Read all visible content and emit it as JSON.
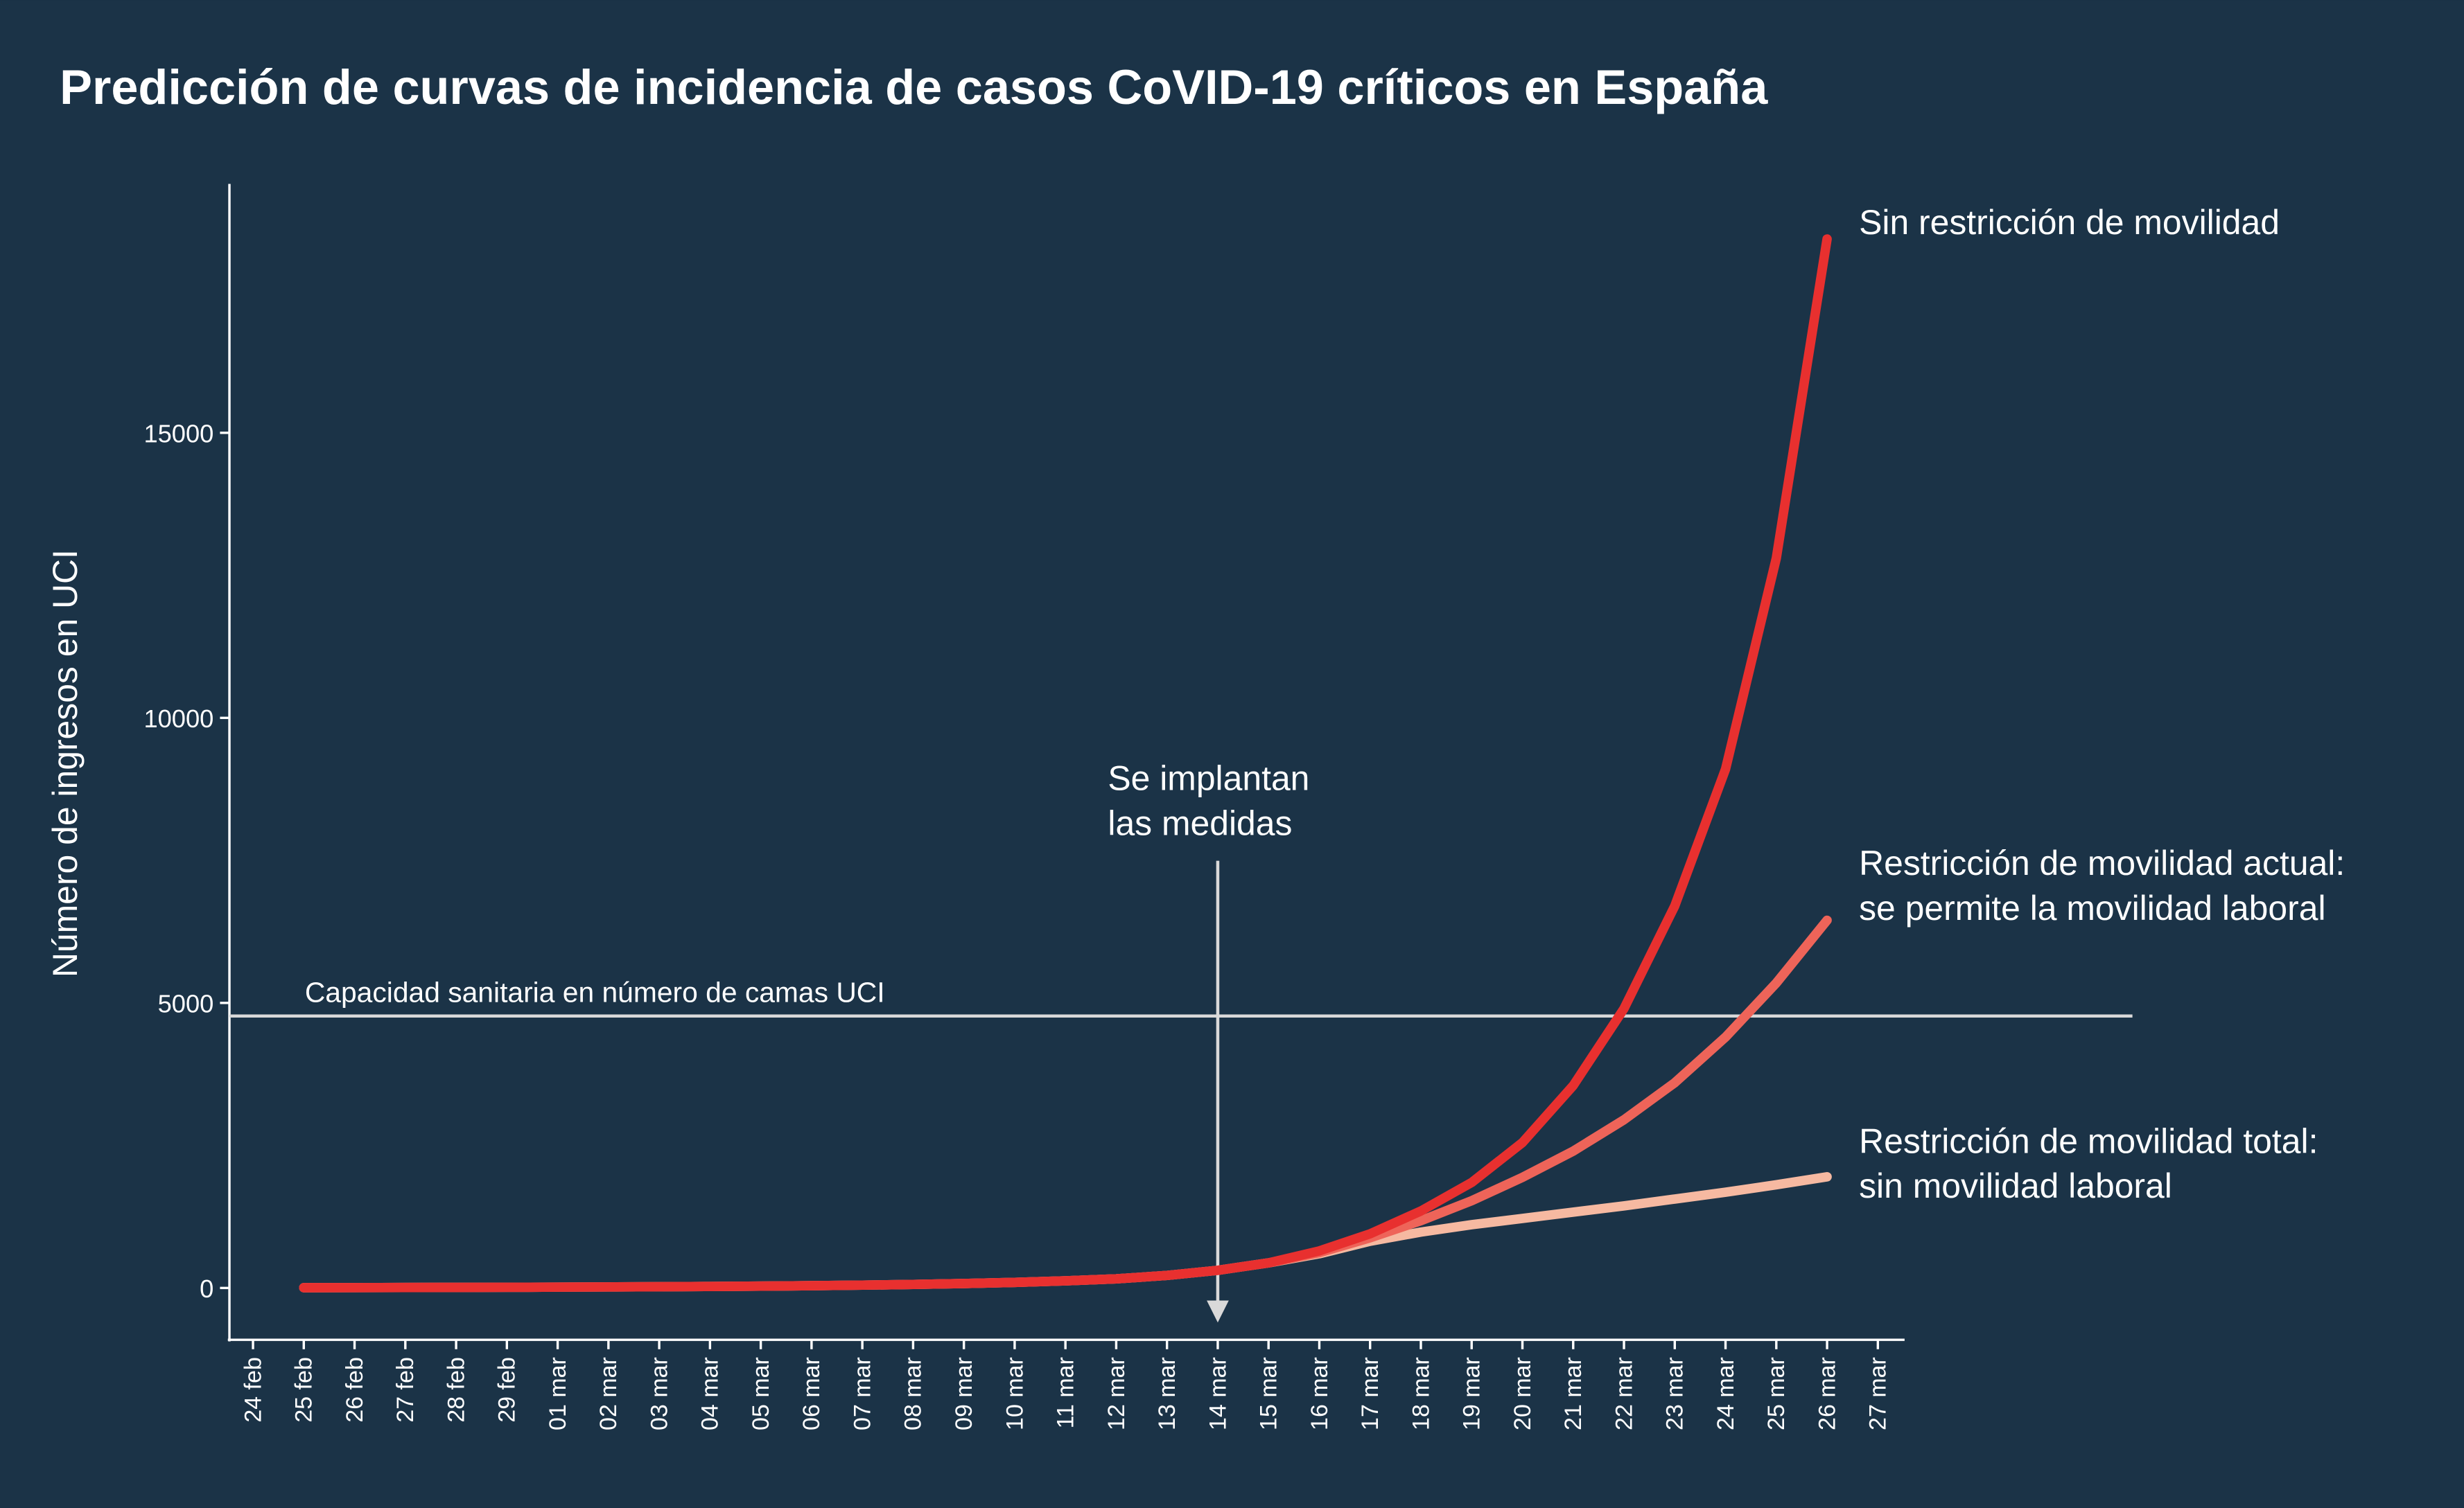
{
  "chart_data": {
    "type": "line",
    "title": "Predicción de curvas de incidencia de casos CoVID-19 críticos en España",
    "y_label": "Número de ingresos en UCI",
    "categories": [
      "24 feb",
      "25 feb",
      "26 feb",
      "27 feb",
      "28 feb",
      "29 feb",
      "01 mar",
      "02 mar",
      "03 mar",
      "04 mar",
      "05 mar",
      "06 mar",
      "07 mar",
      "08 mar",
      "09 mar",
      "10 mar",
      "11 mar",
      "12 mar",
      "13 mar",
      "14 mar",
      "15 mar",
      "16 mar",
      "17 mar",
      "18 mar",
      "19 mar",
      "20 mar",
      "21 mar",
      "22 mar",
      "23 mar",
      "24 mar",
      "25 mar",
      "26 mar",
      "27 mar"
    ],
    "series": [
      {
        "name": "Restricción de movilidad total:\nsin movilidad laboral",
        "color": "#f6b9a1",
        "values": [
          null,
          5,
          6,
          8,
          10,
          12,
          15,
          18,
          22,
          27,
          33,
          40,
          50,
          62,
          78,
          98,
          125,
          160,
          220,
          310,
          440,
          600,
          820,
          980,
          1110,
          1220,
          1330,
          1440,
          1560,
          1680,
          1810,
          1950,
          null
        ]
      },
      {
        "name": "Restricción de movilidad actual:\nse permite la movilidad laboral",
        "color": "#ee6459",
        "values": [
          null,
          5,
          6,
          8,
          10,
          12,
          15,
          18,
          22,
          27,
          33,
          40,
          50,
          62,
          78,
          98,
          125,
          160,
          220,
          310,
          440,
          620,
          880,
          1180,
          1530,
          1940,
          2400,
          2950,
          3600,
          4400,
          5350,
          6450,
          null
        ]
      },
      {
        "name": "Sin restricción de movilidad",
        "color": "#e8302f",
        "values": [
          null,
          5,
          6,
          8,
          10,
          12,
          15,
          18,
          22,
          27,
          33,
          40,
          50,
          62,
          78,
          98,
          125,
          160,
          220,
          310,
          440,
          650,
          950,
          1350,
          1850,
          2550,
          3550,
          4900,
          6700,
          9100,
          12800,
          18400,
          null
        ]
      }
    ],
    "ylim": [
      -909,
      19366
    ],
    "yticks": [
      0,
      5000,
      10000,
      15000
    ],
    "capacity": {
      "label": "Capacidad sanitaria en número de camas UCI",
      "value": 4770
    },
    "event": {
      "label": "Se implantan\nlas medidas",
      "category": 19
    }
  }
}
